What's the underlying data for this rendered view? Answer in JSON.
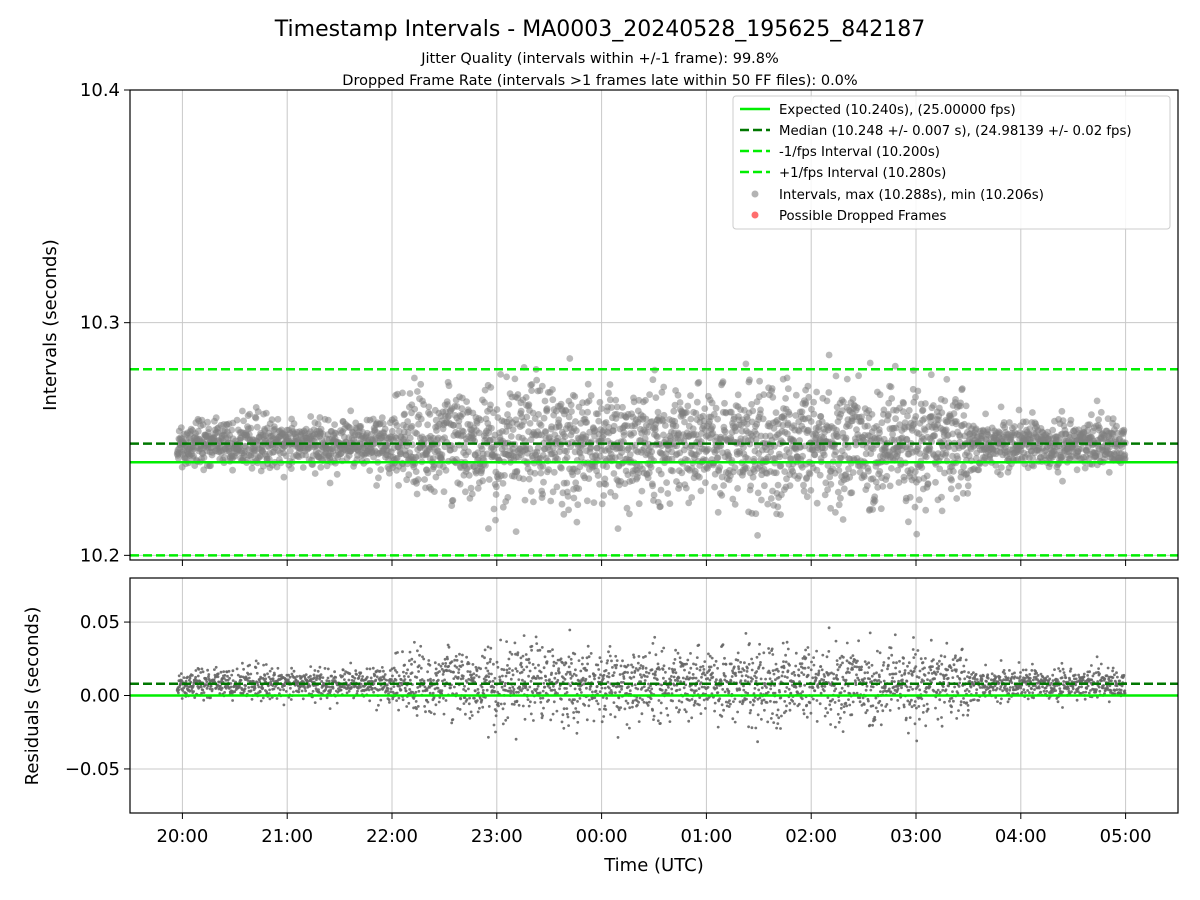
{
  "chart_data": {
    "type": "scatter",
    "title": "Timestamp Intervals - MA0003_20240528_195625_842187",
    "subtitles": [
      "Jitter Quality (intervals within +/-1 frame): 99.8%",
      "Dropped Frame Rate (intervals >1 frames late within 50 FF files): 0.0%"
    ],
    "xlabel": "Time (UTC)",
    "x_tick_labels": [
      "20:00",
      "21:00",
      "22:00",
      "23:00",
      "00:00",
      "01:00",
      "02:00",
      "03:00",
      "04:00",
      "05:00"
    ],
    "x_range_hours": [
      19.5,
      29.5
    ],
    "grid": true,
    "legend_position": "top-right",
    "colors": {
      "expected": "#00ee00",
      "median": "#007700",
      "interval_bounds": "#00ee00",
      "points": "#808080",
      "residual_points": "#666666",
      "dropped": "#ff5555"
    },
    "top_panel": {
      "ylabel": "Intervals (seconds)",
      "ylim": [
        10.198,
        10.4
      ],
      "y_ticks": [
        "10.2",
        "10.3",
        "10.4"
      ],
      "expected": 10.24,
      "median": 10.248,
      "median_spread": 0.007,
      "minus_interval": 10.2,
      "plus_interval": 10.28,
      "max_interval": 10.288,
      "min_interval": 10.206,
      "legend": [
        "Expected (10.240s), (25.00000 fps)",
        "Median (10.248 +/- 0.007 s), (24.98139 +/- 0.02 fps)",
        "-1/fps Interval (10.200s)",
        "+1/fps Interval (10.280s)",
        "Intervals, max (10.288s), min (10.206s)",
        "Possible Dropped Frames"
      ]
    },
    "bottom_panel": {
      "ylabel": "Residuals (seconds)",
      "ylim": [
        -0.08,
        0.08
      ],
      "y_ticks": [
        "0.05",
        "0.00",
        "−0.05"
      ],
      "zero_line": 0.0,
      "median_residual": 0.008
    },
    "series_density": {
      "start_hour": 19.95,
      "end_hour": 29.0,
      "quiet_spread": 0.007,
      "noisy_spread": 0.016,
      "noisy_start_hour": 22.0,
      "noisy_end_hour": 27.5
    }
  }
}
